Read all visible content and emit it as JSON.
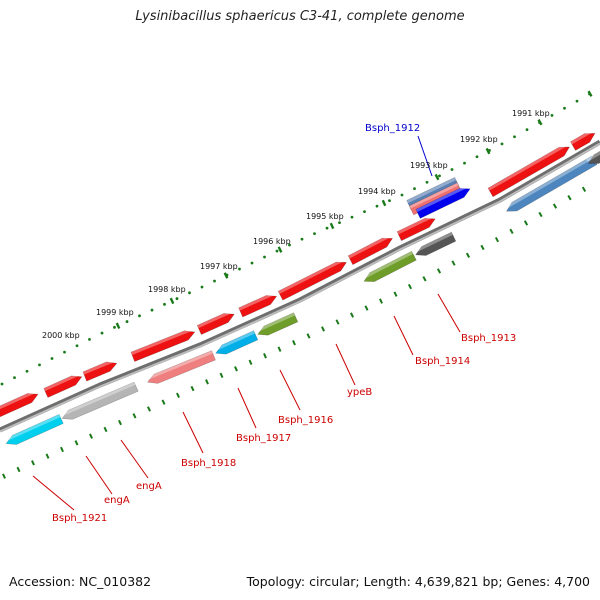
{
  "title": "Lysinibacillus sphaericus C3-41, complete genome",
  "accession": "Accession: NC_010382",
  "topology": "Topology: circular; Length: 4,639,821 bp; Genes: 4,700",
  "colors": {
    "backbone": "#8c8c8c",
    "tick": "#1a7a1a",
    "label_red": "#cc0000",
    "label_blue": "#0000cc"
  },
  "ticks": [
    "1991 kbp",
    "1992 kbp",
    "1993 kbp",
    "1994 kbp",
    "1995 kbp",
    "1996 kbp",
    "1997 kbp",
    "1998 kbp",
    "1999 kbp",
    "2000 kbp"
  ],
  "gene_labels": [
    {
      "text": "Bsph_1912",
      "color": "#0000cc"
    },
    {
      "text": "Bsph_1913",
      "color": "#cc0000"
    },
    {
      "text": "Bsph_1914",
      "color": "#cc0000"
    },
    {
      "text": "ypeB",
      "color": "#cc0000"
    },
    {
      "text": "Bsph_1916",
      "color": "#cc0000"
    },
    {
      "text": "Bsph_1917",
      "color": "#cc0000"
    },
    {
      "text": "Bsph_1918",
      "color": "#cc0000"
    },
    {
      "text": "engA",
      "color": "#cc0000"
    },
    {
      "text": "engA",
      "color": "#cc0000"
    },
    {
      "text": "Bsph_1921",
      "color": "#cc0000"
    }
  ]
}
